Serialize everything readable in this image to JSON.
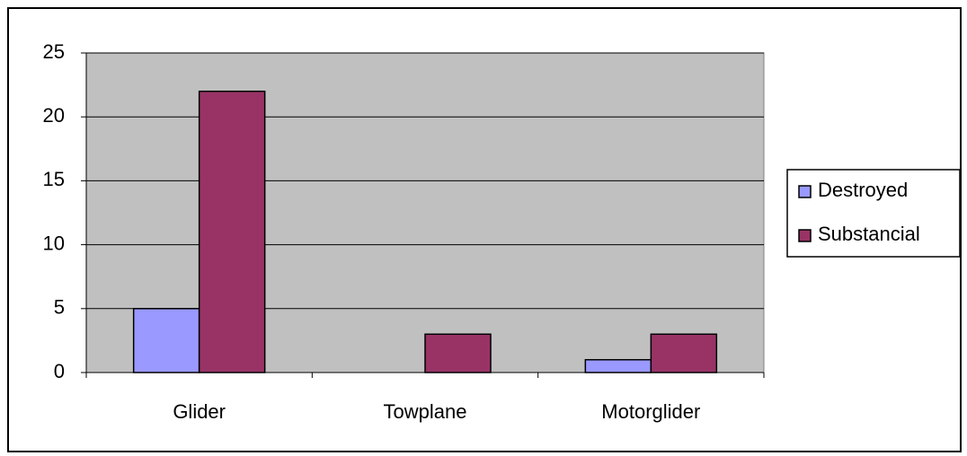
{
  "chart_data": {
    "type": "bar",
    "categories": [
      "Glider",
      "Towplane",
      "Motorglider"
    ],
    "series": [
      {
        "name": "Destroyed",
        "color": "#9999ff",
        "values": [
          5,
          0,
          1
        ]
      },
      {
        "name": "Substancial",
        "color": "#993366",
        "values": [
          22,
          3,
          3
        ]
      }
    ],
    "ylim": [
      0,
      25
    ],
    "yticks": [
      0,
      5,
      10,
      15,
      20,
      25
    ],
    "grid": true,
    "plot_background": "#c0c0c0",
    "legend": "right"
  }
}
